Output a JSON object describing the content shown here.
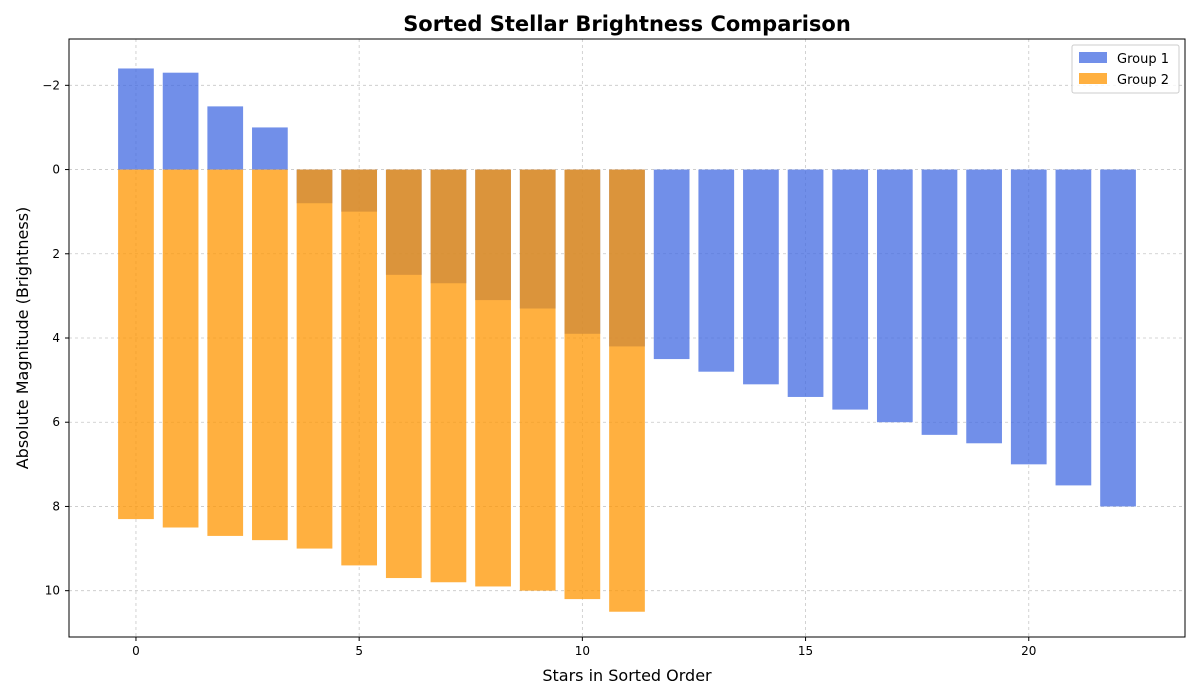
{
  "chart_data": {
    "type": "bar",
    "title": "Sorted Stellar Brightness Comparison",
    "xlabel": "Stars in Sorted Order",
    "ylabel": "Absolute Magnitude (Brightness)",
    "xlim": [
      -1.5,
      23.5
    ],
    "ylim": [
      11.1,
      -3.1
    ],
    "y_inverted": true,
    "grid": true,
    "legend_position": "top-right",
    "x_ticks": [
      0,
      5,
      10,
      15,
      20
    ],
    "y_ticks": [
      -2,
      0,
      2,
      4,
      6,
      8,
      10
    ],
    "y_tick_labels": [
      "−2",
      "0",
      "2",
      "4",
      "6",
      "8",
      "10"
    ],
    "series": [
      {
        "name": "Group 1",
        "color": "#4169E1",
        "x": [
          0,
          1,
          2,
          3,
          4,
          5,
          6,
          7,
          8,
          9,
          10,
          11,
          12,
          13,
          14,
          15,
          16,
          17,
          18,
          19,
          20,
          21,
          22
        ],
        "values": [
          -2.4,
          -2.3,
          -1.5,
          -1.0,
          0.8,
          1.0,
          2.5,
          2.7,
          3.1,
          3.3,
          3.9,
          4.2,
          4.5,
          4.8,
          5.1,
          5.4,
          5.7,
          6.0,
          6.3,
          6.5,
          7.0,
          7.5,
          8.0
        ]
      },
      {
        "name": "Group 2",
        "color": "#FF9500",
        "x": [
          0,
          1,
          2,
          3,
          4,
          5,
          6,
          7,
          8,
          9,
          10,
          11
        ],
        "values": [
          8.3,
          8.5,
          8.7,
          8.8,
          9.0,
          9.4,
          9.7,
          9.8,
          9.9,
          10.0,
          10.2,
          10.5
        ]
      }
    ]
  }
}
